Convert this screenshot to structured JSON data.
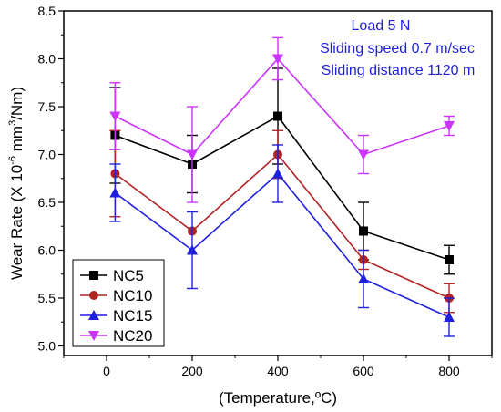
{
  "chart_data": {
    "type": "line",
    "xlabel": "(Temperature,ºC)",
    "ylabel_parts": [
      "Wear Rate (X 10",
      "-6",
      " mm",
      "3",
      "/Nm)"
    ],
    "xlim": [
      -100,
      900
    ],
    "ylim": [
      4.9,
      8.5
    ],
    "xticks": [
      0,
      200,
      400,
      600,
      800
    ],
    "yticks": [
      5.0,
      5.5,
      6.0,
      6.5,
      7.0,
      7.5,
      8.0,
      8.5
    ],
    "x": [
      20,
      200,
      400,
      600,
      800
    ],
    "series": [
      {
        "name": "NC5",
        "color": "#000000",
        "marker": "square",
        "values": [
          7.2,
          6.9,
          7.4,
          6.2,
          5.9
        ],
        "errors": [
          0.5,
          0.3,
          0.5,
          0.3,
          0.15
        ]
      },
      {
        "name": "NC10",
        "color": "#b22222",
        "marker": "circle",
        "values": [
          6.8,
          6.2,
          7.0,
          5.9,
          5.5
        ],
        "errors": [
          0.45,
          0.0,
          0.25,
          0.1,
          0.15
        ]
      },
      {
        "name": "NC15",
        "color": "#1f1fdf",
        "marker": "triangle-up",
        "values": [
          6.6,
          6.0,
          6.8,
          5.7,
          5.3
        ],
        "errors": [
          0.3,
          0.4,
          0.3,
          0.3,
          0.2
        ]
      },
      {
        "name": "NC20",
        "color": "#cc33ff",
        "marker": "triangle-down",
        "values": [
          7.4,
          7.0,
          8.0,
          7.0,
          7.3
        ],
        "errors": [
          0.35,
          0.5,
          0.22,
          0.2,
          0.1
        ]
      }
    ],
    "annotations": [
      "Load 5 N",
      "Sliding speed 0.7 m/sec",
      "Sliding distance 1120 m"
    ],
    "annotation_color": "#1f1fdf",
    "legend_position": "bottom-left",
    "grid": false
  }
}
